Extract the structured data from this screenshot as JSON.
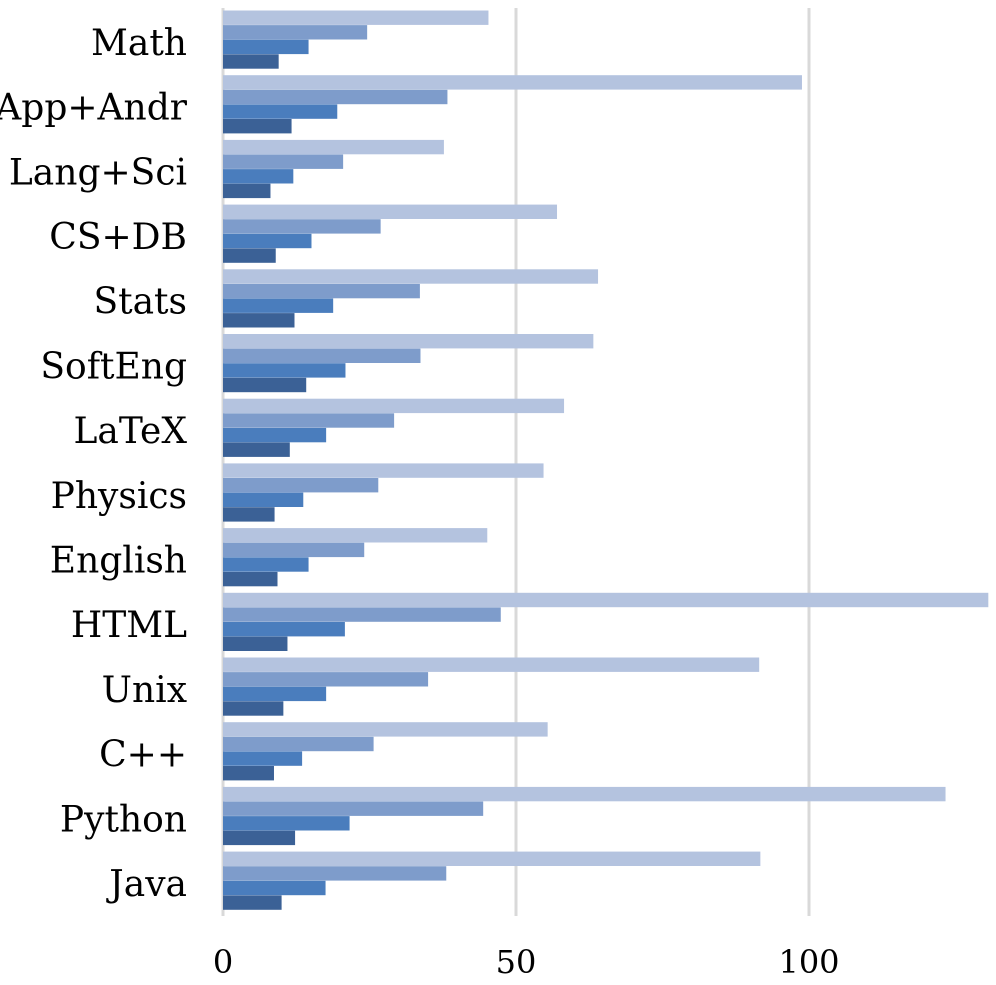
{
  "chart_data": {
    "type": "bar",
    "orientation": "horizontal",
    "categories": [
      "Math",
      "App+Andr",
      "Lang+Sci",
      "CS+DB",
      "Stats",
      "SoftEng",
      "LaTeX",
      "Physics",
      "English",
      "HTML",
      "Unix",
      "C++",
      "Python",
      "Java"
    ],
    "series": [
      {
        "color": "#b4c3df",
        "values": [
          45.3,
          98.8,
          37.7,
          57.0,
          64.0,
          63.2,
          58.2,
          54.7,
          45.1,
          130.6,
          91.5,
          55.4,
          123.3,
          91.7
        ]
      },
      {
        "color": "#7e9ccb",
        "values": [
          24.6,
          38.3,
          20.5,
          26.9,
          33.6,
          33.7,
          29.2,
          26.5,
          24.1,
          47.4,
          35.0,
          25.7,
          44.4,
          38.1
        ]
      },
      {
        "color": "#4a7dbd",
        "values": [
          14.6,
          19.5,
          12.0,
          15.1,
          18.8,
          20.9,
          17.6,
          13.7,
          14.6,
          20.8,
          17.6,
          13.5,
          21.6,
          17.5
        ]
      },
      {
        "color": "#3b6196",
        "values": [
          9.5,
          11.7,
          8.1,
          9.0,
          12.2,
          14.2,
          11.4,
          8.8,
          9.3,
          11.0,
          10.3,
          8.7,
          12.3,
          10.0
        ]
      }
    ],
    "xlim": [
      0,
      130
    ],
    "xticks": [
      0,
      50,
      100
    ],
    "grid": true,
    "title": "",
    "xlabel": "",
    "ylabel": ""
  }
}
